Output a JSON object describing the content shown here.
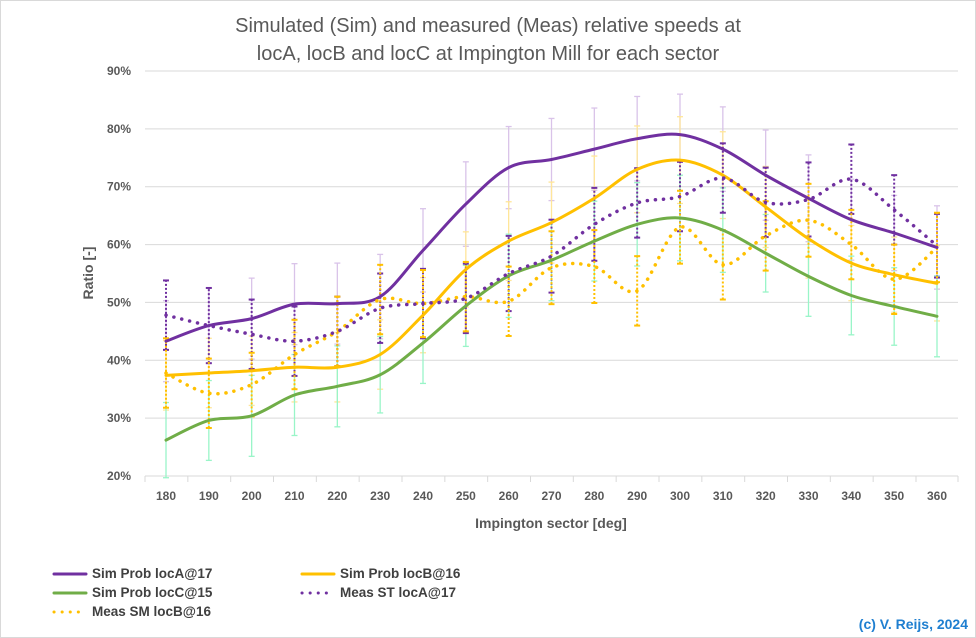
{
  "chart_data": {
    "type": "line",
    "title": "Simulated (Sim) and measured (Meas) relative speeds at locA, locB and locC at Impington Mill for each sector",
    "title_lines": [
      "Simulated (Sim) and measured (Meas) relative speeds at",
      "locA, locB and locC at Impington Mill for each sector"
    ],
    "xlabel": "Impington sector [deg]",
    "ylabel": "Ratio [-]",
    "ylim": [
      20,
      90
    ],
    "yticks": [
      "20%",
      "30%",
      "40%",
      "50%",
      "60%",
      "70%",
      "80%",
      "90%"
    ],
    "ytick_values": [
      20,
      30,
      40,
      50,
      60,
      70,
      80,
      90
    ],
    "categories": [
      "180",
      "190",
      "200",
      "210",
      "220",
      "230",
      "240",
      "250",
      "260",
      "270",
      "280",
      "290",
      "300",
      "310",
      "320",
      "330",
      "340",
      "350",
      "360"
    ],
    "grid": true,
    "legend_position": "bottom",
    "series": [
      {
        "name": "Sim Prob locA@17",
        "style": "solid",
        "color": "#7030A0",
        "error_color": "#D9C3E9",
        "values": [
          43.3,
          46,
          47.2,
          49.7,
          49.8,
          51,
          59,
          67,
          73.3,
          74.7,
          76.5,
          78.3,
          79,
          76.5,
          72,
          68,
          64.3,
          62,
          59.5
        ],
        "error": [
          7,
          6.5,
          7,
          7,
          7,
          7.3,
          7.2,
          7.3,
          7.1,
          7.1,
          7.1,
          7.3,
          7,
          7.3,
          7.8,
          7.5,
          7,
          6.5,
          7.2
        ]
      },
      {
        "name": "Sim Prob locB@16",
        "style": "solid",
        "color": "#FFC000",
        "error_color": "#FFE699",
        "values": [
          37.4,
          37.8,
          38.2,
          38.8,
          38.8,
          41,
          47.8,
          55.7,
          60.6,
          63.8,
          68,
          73,
          74.6,
          72,
          66.5,
          61,
          56.8,
          54.8,
          53.3
        ],
        "error": [
          6,
          6,
          6,
          6,
          6,
          6,
          6.5,
          6.5,
          6.8,
          7,
          7.3,
          7.5,
          7.5,
          7.5,
          7,
          6.8,
          6.5,
          6.5,
          6.5
        ]
      },
      {
        "name": "Sim Prob locC@15",
        "style": "solid",
        "color": "#70AD47",
        "error_color": "#99F5C8",
        "values": [
          26.2,
          29.6,
          30.4,
          34,
          35.5,
          37.5,
          43,
          49.4,
          54.6,
          57.3,
          60.6,
          63.5,
          64.6,
          62.5,
          58.5,
          54.5,
          51.2,
          49.3,
          47.6
        ],
        "error": [
          6.5,
          6.9,
          7,
          7,
          7,
          6.6,
          7,
          7,
          7.2,
          7,
          6.9,
          7.2,
          7.4,
          7.3,
          6.7,
          6.9,
          6.8,
          6.7,
          7
        ]
      },
      {
        "name": "Meas ST locA@17",
        "style": "dotted",
        "color": "#7030A0",
        "error_color": "#7030A0",
        "values": [
          47.8,
          46,
          44.5,
          43.3,
          45,
          49,
          49.8,
          50.7,
          55,
          58,
          63.5,
          67.2,
          68.3,
          71.5,
          67.3,
          67.8,
          71.3,
          66,
          59.8
        ],
        "error": [
          6,
          6.5,
          6,
          6,
          6,
          6,
          6,
          6,
          6.5,
          6.3,
          6.3,
          6,
          6,
          6,
          6,
          6.4,
          6,
          6,
          5.5
        ]
      },
      {
        "name": "Meas SM locB@16",
        "style": "dotted",
        "color": "#FFC000",
        "error_color": "#FFC000",
        "values": [
          37.8,
          34.3,
          35.8,
          41,
          45,
          50.5,
          49.8,
          51,
          50.2,
          56,
          56.2,
          52,
          63,
          56.5,
          61.5,
          64.2,
          60,
          54,
          59.5
        ],
        "error": [
          6,
          6,
          5.5,
          6,
          6,
          6,
          5.8,
          6,
          6,
          6.3,
          6.3,
          6,
          6.3,
          6,
          6,
          6.3,
          6,
          6,
          6
        ]
      }
    ]
  },
  "footer": {
    "copyright": "(c) V. Reijs, 2024"
  }
}
